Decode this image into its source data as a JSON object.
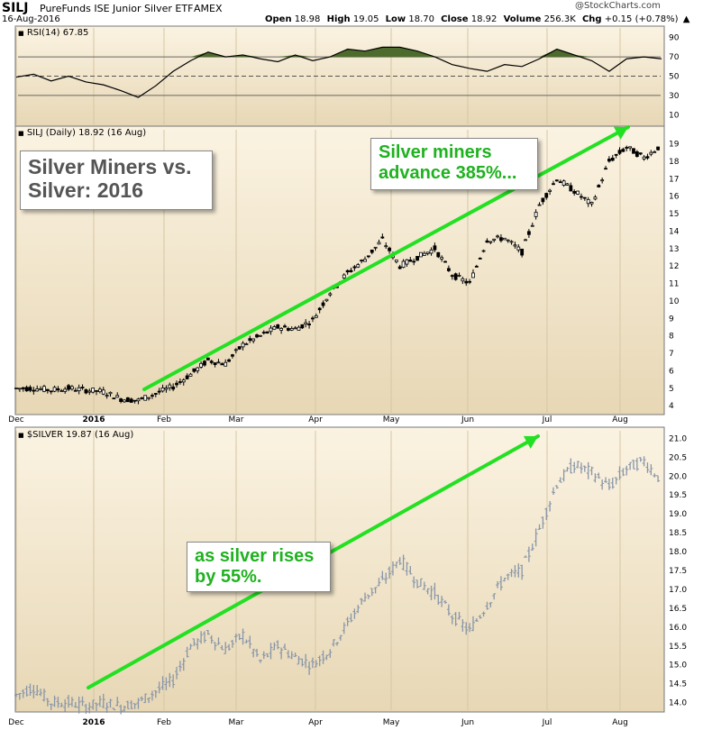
{
  "header": {
    "symbol": "SILJ",
    "name": "PureFunds ISE Junior Silver ETF",
    "exchange": "AMEX",
    "date": "16-Aug-2016",
    "watermark": "@StockCharts.com",
    "quote": {
      "open_label": "Open",
      "open": "18.98",
      "high_label": "High",
      "high": "19.05",
      "low_label": "Low",
      "low": "18.70",
      "close_label": "Close",
      "close": "18.92",
      "volume_label": "Volume",
      "volume": "256.3K",
      "chg_label": "Chg",
      "chg": "+0.15 (+0.78%)"
    }
  },
  "panels": {
    "rsi_label": "RSI(14) 67.85",
    "silj_label": "SILJ (Daily) 18.92 (16 Aug)",
    "silver_label": "$SILVER 19.87 (16 Aug)"
  },
  "annotations": {
    "title_line1": "Silver Miners vs.",
    "title_line2": "Silver: 2016",
    "miners_line1": "Silver miners",
    "miners_line2": "advance 385%...",
    "silver_line1": "as silver rises",
    "silver_line2": "by 55%."
  },
  "colors": {
    "panel_bg_top": "#faf1de",
    "panel_bg_bottom": "#e6d6b4",
    "arrow": "#22e022",
    "candle": "#000000",
    "silver_bars": "#8896a8",
    "rsi_fill": "#4d6b2c",
    "callout_text": "#1fb21f"
  },
  "chart_data": [
    {
      "type": "line",
      "name": "RSI(14)",
      "ylim": [
        0,
        100
      ],
      "yticks": [
        10,
        30,
        50,
        70,
        90
      ],
      "guides": [
        30,
        50,
        70
      ],
      "x": [
        "Dec 1",
        "Dec 8",
        "Dec 15",
        "Dec 22",
        "Dec 29",
        "Jan 5",
        "Jan 12",
        "Jan 19",
        "Jan 26",
        "Feb 2",
        "Feb 9",
        "Feb 16",
        "Feb 23",
        "Mar 1",
        "Mar 8",
        "Mar 15",
        "Mar 22",
        "Mar 29",
        "Apr 5",
        "Apr 12",
        "Apr 19",
        "Apr 26",
        "May 3",
        "May 10",
        "May 17",
        "May 24",
        "May 31",
        "Jun 7",
        "Jun 14",
        "Jun 21",
        "Jun 28",
        "Jul 5",
        "Jul 12",
        "Jul 19",
        "Jul 26",
        "Aug 2",
        "Aug 9",
        "Aug 16"
      ],
      "values": [
        49,
        52,
        45,
        50,
        44,
        41,
        35,
        28,
        40,
        55,
        66,
        75,
        70,
        72,
        68,
        65,
        72,
        66,
        70,
        78,
        76,
        80,
        80,
        76,
        70,
        62,
        58,
        55,
        62,
        60,
        68,
        78,
        72,
        66,
        55,
        68,
        70,
        68
      ]
    },
    {
      "type": "candlestick",
      "name": "SILJ (Daily)",
      "ylim": [
        3.6,
        19.8
      ],
      "yticks": [
        4,
        5,
        6,
        7,
        8,
        9,
        10,
        11,
        12,
        13,
        14,
        15,
        16,
        17,
        18,
        19
      ],
      "xticks": [
        "Dec",
        "2016",
        "Feb",
        "Mar",
        "Apr",
        "May",
        "Jun",
        "Jul",
        "Aug"
      ],
      "x": [
        "Dec 1",
        "Dec 8",
        "Dec 15",
        "Dec 22",
        "Dec 29",
        "Jan 5",
        "Jan 12",
        "Jan 19",
        "Jan 26",
        "Feb 2",
        "Feb 9",
        "Feb 16",
        "Feb 23",
        "Mar 1",
        "Mar 8",
        "Mar 15",
        "Mar 22",
        "Mar 29",
        "Apr 5",
        "Apr 12",
        "Apr 19",
        "Apr 26",
        "May 3",
        "May 10",
        "May 17",
        "May 24",
        "May 31",
        "Jun 7",
        "Jun 14",
        "Jun 21",
        "Jun 28",
        "Jul 5",
        "Jul 12",
        "Jul 19",
        "Jul 26",
        "Aug 2",
        "Aug 9",
        "Aug 16"
      ],
      "close": [
        5.0,
        5.0,
        4.9,
        5.0,
        4.9,
        4.8,
        4.4,
        4.3,
        4.7,
        5.1,
        5.8,
        6.6,
        6.4,
        7.5,
        8.0,
        8.5,
        8.4,
        8.9,
        10.5,
        11.6,
        12.4,
        13.5,
        12.0,
        12.5,
        13.0,
        11.5,
        11.0,
        13.5,
        13.6,
        12.8,
        15.5,
        17.0,
        16.3,
        15.5,
        18.0,
        18.8,
        18.2,
        18.92
      ]
    },
    {
      "type": "bar",
      "name": "$SILVER",
      "ylim": [
        13.8,
        21.2
      ],
      "yticks": [
        14.0,
        14.5,
        15.0,
        15.5,
        16.0,
        16.5,
        17.0,
        17.5,
        18.0,
        18.5,
        19.0,
        19.5,
        20.0,
        20.5,
        21.0
      ],
      "xticks": [
        "Dec",
        "2016",
        "Feb",
        "Mar",
        "Apr",
        "May",
        "Jun",
        "Jul",
        "Aug"
      ],
      "x": [
        "Dec 1",
        "Dec 8",
        "Dec 15",
        "Dec 22",
        "Dec 29",
        "Jan 5",
        "Jan 12",
        "Jan 19",
        "Jan 26",
        "Feb 2",
        "Feb 9",
        "Feb 16",
        "Feb 23",
        "Mar 1",
        "Mar 8",
        "Mar 15",
        "Mar 22",
        "Mar 29",
        "Apr 5",
        "Apr 12",
        "Apr 19",
        "Apr 26",
        "May 3",
        "May 10",
        "May 17",
        "May 24",
        "May 31",
        "Jun 7",
        "Jun 14",
        "Jun 21",
        "Jun 28",
        "Jul 5",
        "Jul 12",
        "Jul 19",
        "Jul 26",
        "Aug 2",
        "Aug 9",
        "Aug 16"
      ],
      "close": [
        14.2,
        14.4,
        14.0,
        14.0,
        13.9,
        14.0,
        13.9,
        14.0,
        14.3,
        14.6,
        15.5,
        15.8,
        15.4,
        15.8,
        15.1,
        15.5,
        15.2,
        15.0,
        15.4,
        16.1,
        16.8,
        17.2,
        17.8,
        17.2,
        16.9,
        16.3,
        15.9,
        16.6,
        17.3,
        17.5,
        18.6,
        19.8,
        20.3,
        20.1,
        19.7,
        20.2,
        20.4,
        19.87
      ]
    }
  ]
}
